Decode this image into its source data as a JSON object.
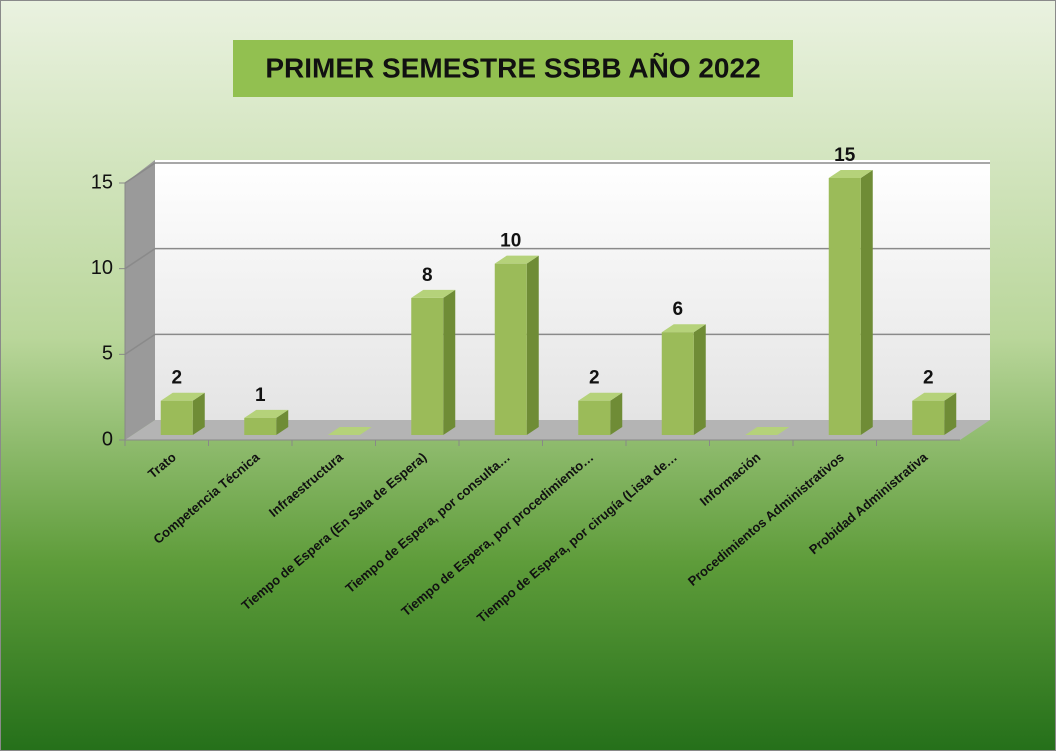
{
  "chart_data": {
    "type": "bar3d",
    "title": "PRIMER SEMESTRE SSBB AÑO 2022",
    "categories": [
      "Trato",
      "Competencia Técnica",
      "Infraestructura",
      "Tiempo de Espera (En Sala de Espera)",
      "Tiempo de Espera, por consulta…",
      "Tiempo de Espera, por procedimiento…",
      "Tiempo de Espera, por cirugía  (Lista de…",
      "Información",
      "Procedimientos Administrativos",
      "Probidad Administrativa"
    ],
    "values": [
      2,
      1,
      0,
      8,
      10,
      2,
      6,
      0,
      15,
      2
    ],
    "color": "#9bbb59",
    "ylim": [
      0,
      15
    ],
    "yticks": [
      0,
      5,
      10,
      15
    ],
    "grid": true
  }
}
